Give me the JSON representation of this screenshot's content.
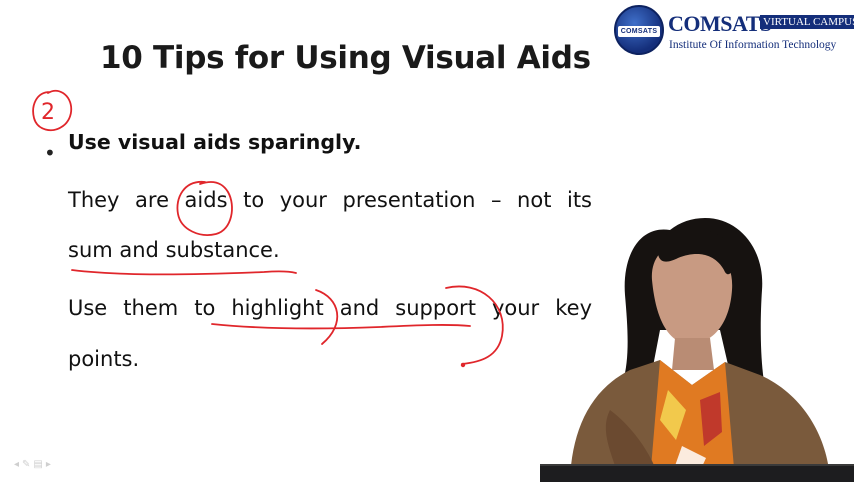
{
  "slide": {
    "title": "10 Tips for Using Visual Aids",
    "tip_number": "2",
    "bullet": "Use visual aids sparingly.",
    "lines": [
      "They are aids to your presentation – not its",
      "sum and substance.",
      "Use them to highlight and support your key",
      "points."
    ]
  },
  "logo": {
    "name": "COMSATS",
    "tag": "VIRTUAL CAMPUS",
    "subtitle": "Institute Of Information Technology",
    "seal_text": "COMSATS"
  },
  "annotation_color": "#e0262b",
  "nav_icons": [
    "prev-icon",
    "pen-icon",
    "menu-icon",
    "next-icon"
  ]
}
